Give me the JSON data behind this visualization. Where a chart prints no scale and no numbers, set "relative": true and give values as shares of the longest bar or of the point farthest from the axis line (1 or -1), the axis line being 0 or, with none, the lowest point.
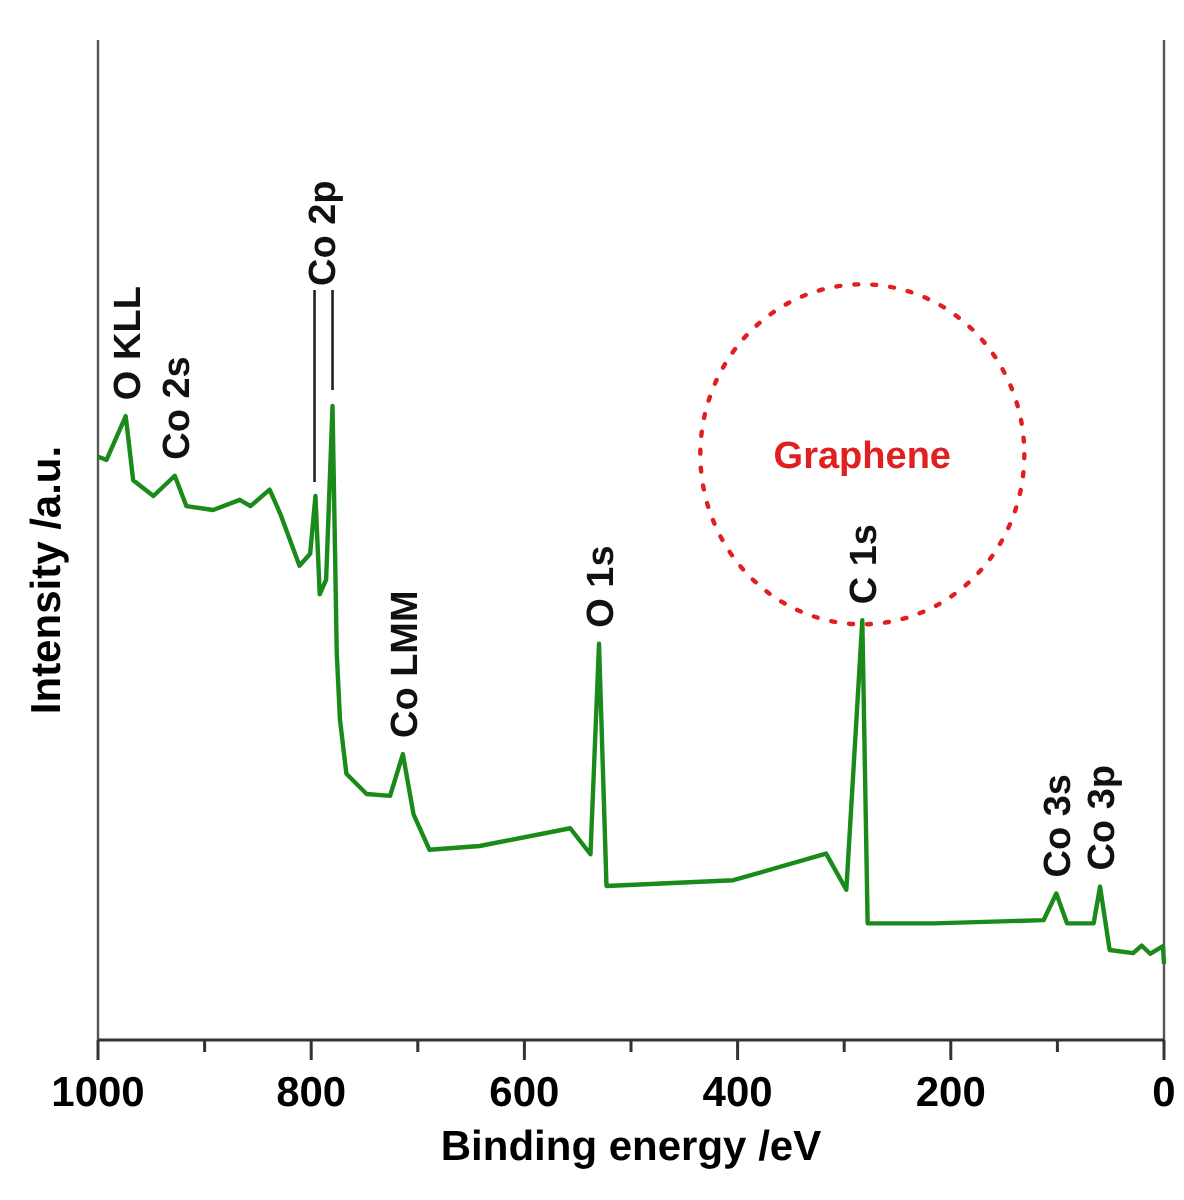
{
  "chart_data": {
    "type": "line",
    "relative": true,
    "xlabel": "Binding energy /eV",
    "ylabel": "Intensity /a.u.",
    "xlim": [
      1000,
      0
    ],
    "xticks": [
      1000,
      {
        "value": 900,
        "label": null
      },
      800,
      {
        "value": 700,
        "label": null
      },
      600,
      {
        "value": 500,
        "label": null
      },
      400,
      {
        "value": 300,
        "label": null
      },
      200,
      {
        "value": 100,
        "label": null
      },
      0
    ],
    "grid": false,
    "line_style": "solid",
    "series": [
      {
        "color": "#1a8a1a",
        "x": [
          1000,
          992,
          974,
          967,
          948,
          928,
          917,
          892,
          867,
          857,
          839,
          829,
          811,
          801,
          796,
          792,
          786,
          780,
          776,
          773,
          767,
          748,
          726,
          714,
          704,
          689,
          642,
          557,
          538,
          530,
          523,
          404,
          317,
          298,
          283,
          278,
          216,
          113,
          101,
          91,
          66,
          60,
          51,
          29,
          21,
          13,
          1,
          0
        ],
        "values": [
          0.92,
          0.915,
          0.984,
          0.883,
          0.858,
          0.89,
          0.842,
          0.836,
          0.852,
          0.842,
          0.868,
          0.83,
          0.748,
          0.767,
          0.858,
          0.703,
          0.726,
          1.0,
          0.609,
          0.505,
          0.42,
          0.388,
          0.385,
          0.451,
          0.356,
          0.3,
          0.306,
          0.334,
          0.293,
          0.625,
          0.243,
          0.252,
          0.294,
          0.237,
          0.662,
          0.184,
          0.184,
          0.189,
          0.231,
          0.184,
          0.184,
          0.242,
          0.142,
          0.137,
          0.149,
          0.136,
          0.148,
          0.12
        ]
      }
    ],
    "annotations": [
      {
        "text": "O KLL",
        "x": 974,
        "y": 0.984
      },
      {
        "text": "Co 2s",
        "x": 928,
        "y": 0.89
      },
      {
        "text": "Co 2p",
        "x": 780,
        "y": 1.0
      },
      {
        "text": "Co LMM",
        "x": 714,
        "y": 0.451
      },
      {
        "text": "O 1s",
        "x": 530,
        "y": 0.625
      },
      {
        "text": "C 1s",
        "x": 283,
        "y": 0.662
      },
      {
        "text": "Co 3s",
        "x": 101,
        "y": 0.231
      },
      {
        "text": "Co 3p",
        "x": 60,
        "y": 0.242
      },
      "Graphene"
    ]
  }
}
